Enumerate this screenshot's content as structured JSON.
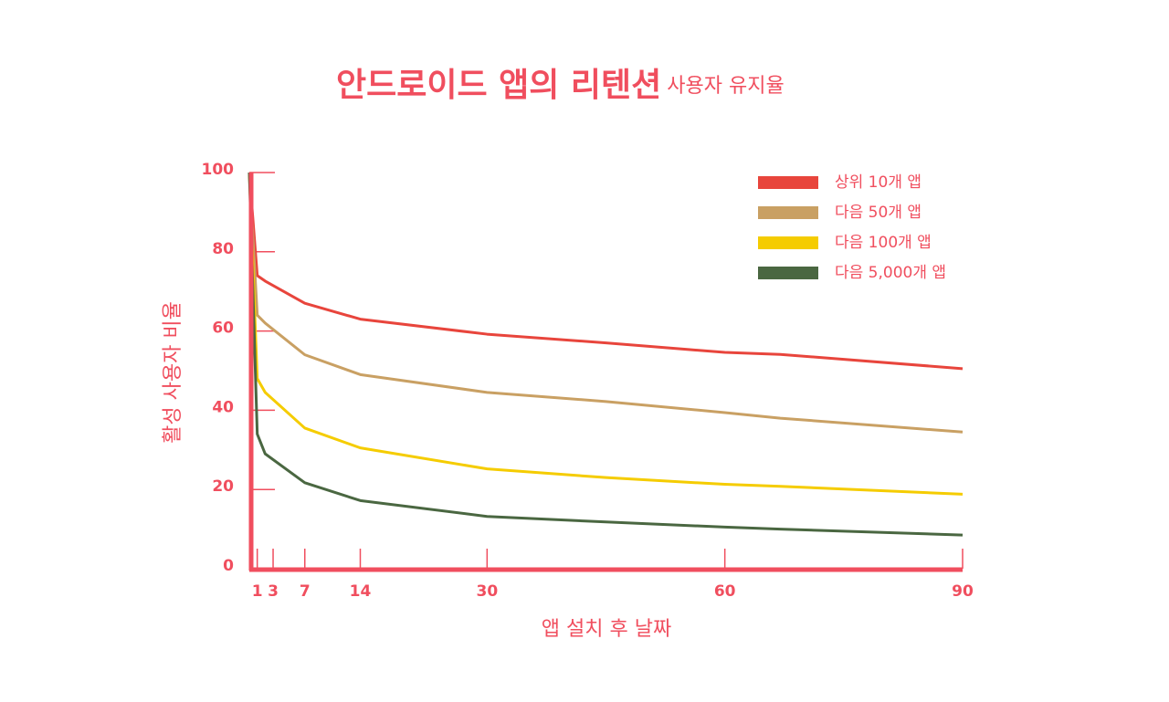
{
  "chart_data": {
    "type": "line",
    "title": "안드로이드 앱의 리텐션",
    "subtitle": "사용자 유지율",
    "x_label": "앱 설치 후 날짜",
    "y_label": "활성 사용자 비율",
    "x": [
      0,
      1,
      2,
      7,
      14,
      30,
      45,
      60,
      67,
      90
    ],
    "xlim": [
      0,
      90
    ],
    "xticks": [
      1,
      3,
      7,
      14,
      30,
      60,
      90
    ],
    "ylim": [
      0,
      100
    ],
    "yticks": [
      0,
      20,
      40,
      60,
      80,
      100
    ],
    "legend": "top-right",
    "series": [
      {
        "name": "상위 10개 앱",
        "color": "#e8453c",
        "values": [
          100,
          74,
          72.6,
          67,
          63,
          59.2,
          57,
          54.6,
          54.1,
          50.5
        ]
      },
      {
        "name": "다음 50개 앱",
        "color": "#c9a063",
        "values": [
          100,
          64,
          62,
          54,
          49,
          44.5,
          42.2,
          39.4,
          38,
          34.5
        ]
      },
      {
        "name": "다음 100개 앱",
        "color": "#f5cc00",
        "values": [
          100,
          48,
          44.5,
          35.5,
          30.5,
          25.2,
          23,
          21.3,
          20.8,
          18.8
        ]
      },
      {
        "name": "다음 5,000개 앱",
        "color": "#4a6741",
        "values": [
          100,
          34,
          29,
          21.7,
          17.2,
          13.2,
          11.8,
          10.5,
          10,
          8.5
        ]
      }
    ]
  }
}
